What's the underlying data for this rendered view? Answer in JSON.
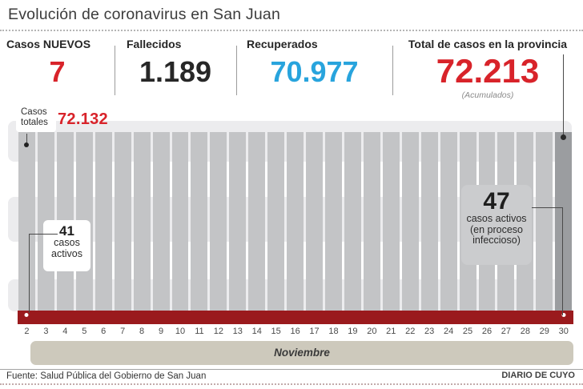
{
  "title": "Evolución de coronavirus en San Juan",
  "stats": [
    {
      "label": "Casos NUEVOS",
      "value": "7",
      "color": "#d8232a"
    },
    {
      "label": "Fallecidos",
      "value": "1.189",
      "color": "#272727"
    },
    {
      "label": "Recuperados",
      "value": "70.977",
      "color": "#28a4dd"
    },
    {
      "label": "Total de casos en la provincia",
      "value": "72.213",
      "sublabel": "(Acumulados)",
      "color": "#d8232a"
    }
  ],
  "chart": {
    "left_total_label_line1": "Casos",
    "left_total_label_line2": "totales",
    "left_total_value": "72.132",
    "annotation_41_value": "41",
    "annotation_41_line1": "casos",
    "annotation_41_line2": "activos",
    "annotation_47_value": "47",
    "annotation_47_line1": "casos activos",
    "annotation_47_line2": "(en proceso",
    "annotation_47_line3": "infeccioso)",
    "month": "Noviembre"
  },
  "footer": {
    "source": "Fuente: Salud Pública del Gobierno de San Juan",
    "credit": "DIARIO DE CUYO"
  },
  "colors": {
    "accent_red": "#d8232a",
    "accent_blue": "#28a4dd",
    "bar_gray": "#c3c4c6",
    "bar_gray_dark_last": "#9b9da0",
    "bar_active_red": "#9a1a1d",
    "stripe_gray": "#ececee",
    "month_bar_tan": "#cdc9bc"
  },
  "chart_data": {
    "type": "bar",
    "title": "Evolución de coronavirus en San Juan",
    "xlabel": "Noviembre (día del mes)",
    "categories": [
      "2",
      "3",
      "4",
      "5",
      "6",
      "7",
      "8",
      "9",
      "10",
      "11",
      "12",
      "13",
      "14",
      "15",
      "16",
      "17",
      "18",
      "19",
      "20",
      "21",
      "22",
      "23",
      "24",
      "25",
      "26",
      "27",
      "28",
      "29",
      "30"
    ],
    "grid": "horizontal light-gray rounded bands behind bars",
    "legend_position": "on-chart annotations with connector lines and dots",
    "series": [
      {
        "name": "Casos totales",
        "render": "full-height gray columns, uniform height (not to scale); last day darker gray",
        "labeled_points": [
          {
            "day": "2",
            "value": 72132,
            "label": "Casos totales 72.132"
          },
          {
            "day": "30",
            "value": 72213,
            "label": "Total de casos en la provincia 72.213 (Acumulados)"
          }
        ]
      },
      {
        "name": "Casos activos",
        "render": "short dark-red columns at the base of each day, roughly equal height",
        "labeled_points": [
          {
            "day": "2",
            "value": 41,
            "label": "41 casos activos"
          },
          {
            "day": "30",
            "value": 47,
            "label": "47 casos activos (en proceso infeccioso)"
          }
        ]
      }
    ]
  }
}
